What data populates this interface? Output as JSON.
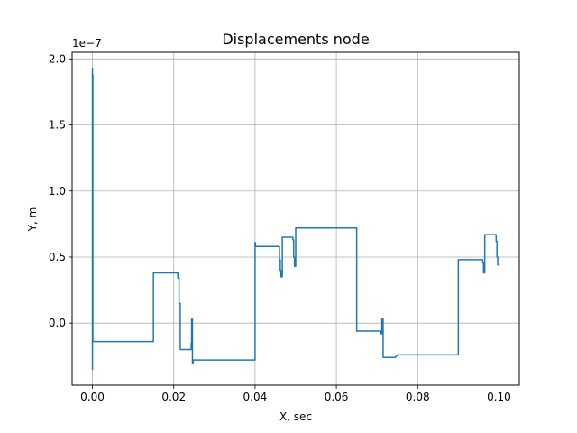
{
  "chart_data": {
    "type": "line",
    "title": "Displacements node",
    "xlabel": "X, sec",
    "ylabel": "Y, m",
    "y_offset_label": "1e−7",
    "xlim": [
      -0.005,
      0.105
    ],
    "ylim": [
      -0.47,
      2.05
    ],
    "grid": true,
    "line_color": "#1f77b4",
    "x_ticks": [
      {
        "value": 0.0,
        "label": "0.00"
      },
      {
        "value": 0.02,
        "label": "0.02"
      },
      {
        "value": 0.04,
        "label": "0.04"
      },
      {
        "value": 0.06,
        "label": "0.06"
      },
      {
        "value": 0.08,
        "label": "0.08"
      },
      {
        "value": 0.1,
        "label": "0.10"
      }
    ],
    "y_ticks": [
      {
        "value": 0.0,
        "label": "0.0"
      },
      {
        "value": 0.5,
        "label": "0.5"
      },
      {
        "value": 1.0,
        "label": "1.0"
      },
      {
        "value": 1.5,
        "label": "1.5"
      },
      {
        "value": 2.0,
        "label": "2.0"
      }
    ],
    "series": [
      {
        "x": [
          0.0,
          0.0,
          0.0,
          0.0,
          0.0001,
          0.0001,
          0.015,
          0.015,
          0.021,
          0.021,
          0.0213,
          0.0213,
          0.0216,
          0.0216,
          0.0243,
          0.0243,
          0.0244,
          0.0244,
          0.0246,
          0.0246,
          0.0248,
          0.0248,
          0.025,
          0.025,
          0.04,
          0.04,
          0.0401,
          0.0401,
          0.046,
          0.046,
          0.0462,
          0.0462,
          0.0464,
          0.0464,
          0.0467,
          0.0467,
          0.0493,
          0.0493,
          0.0495,
          0.0495,
          0.0497,
          0.0497,
          0.05,
          0.05,
          0.065,
          0.065,
          0.071,
          0.071,
          0.0712,
          0.0712,
          0.0715,
          0.0715,
          0.0745,
          0.075,
          0.09,
          0.09,
          0.096,
          0.096,
          0.0962,
          0.0962,
          0.0965,
          0.0965,
          0.0993,
          0.0993,
          0.0995,
          0.0995,
          0.0997,
          0.0997,
          0.1
        ],
        "y": [
          0.0,
          1.93,
          -0.35,
          1.88,
          1.88,
          -0.14,
          -0.14,
          0.38,
          0.38,
          0.34,
          0.34,
          0.15,
          0.15,
          -0.2,
          -0.2,
          -0.15,
          -0.15,
          0.03,
          0.03,
          -0.3,
          -0.3,
          -0.28,
          -0.28,
          -0.28,
          -0.28,
          0.61,
          0.61,
          0.58,
          0.58,
          0.48,
          0.48,
          0.4,
          0.4,
          0.35,
          0.35,
          0.65,
          0.65,
          0.63,
          0.63,
          0.5,
          0.5,
          0.43,
          0.43,
          0.72,
          0.72,
          -0.06,
          -0.06,
          -0.08,
          -0.08,
          0.03,
          0.03,
          -0.26,
          -0.26,
          -0.24,
          -0.24,
          0.48,
          0.48,
          0.46,
          0.46,
          0.38,
          0.38,
          0.67,
          0.67,
          0.62,
          0.62,
          0.5,
          0.5,
          0.44,
          0.44
        ]
      }
    ]
  }
}
